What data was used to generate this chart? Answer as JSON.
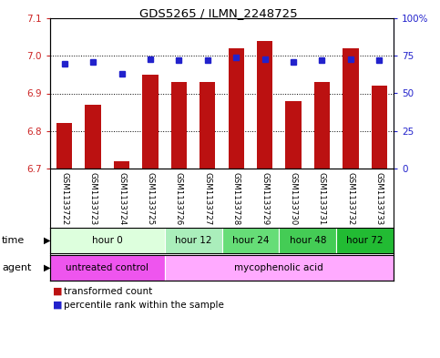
{
  "title": "GDS5265 / ILMN_2248725",
  "samples": [
    "GSM1133722",
    "GSM1133723",
    "GSM1133724",
    "GSM1133725",
    "GSM1133726",
    "GSM1133727",
    "GSM1133728",
    "GSM1133729",
    "GSM1133730",
    "GSM1133731",
    "GSM1133732",
    "GSM1133733"
  ],
  "bar_values": [
    6.82,
    6.87,
    6.72,
    6.95,
    6.93,
    6.93,
    7.02,
    7.04,
    6.88,
    6.93,
    7.02,
    6.92
  ],
  "bar_bottom": 6.7,
  "percentile_values": [
    70,
    71,
    63,
    73,
    72,
    72,
    74,
    73,
    71,
    72,
    73,
    72
  ],
  "ylim_left": [
    6.7,
    7.1
  ],
  "ylim_right": [
    0,
    100
  ],
  "yticks_left": [
    6.7,
    6.8,
    6.9,
    7.0,
    7.1
  ],
  "yticks_right": [
    0,
    25,
    50,
    75,
    100
  ],
  "ytick_labels_right": [
    "0",
    "25",
    "50",
    "75",
    "100%"
  ],
  "bar_color": "#BB1111",
  "dot_color": "#2222CC",
  "time_groups": [
    {
      "label": "hour 0",
      "start": 0,
      "end": 4,
      "color": "#ddffdd"
    },
    {
      "label": "hour 12",
      "start": 4,
      "end": 6,
      "color": "#aaeebb"
    },
    {
      "label": "hour 24",
      "start": 6,
      "end": 8,
      "color": "#66dd77"
    },
    {
      "label": "hour 48",
      "start": 8,
      "end": 10,
      "color": "#44cc55"
    },
    {
      "label": "hour 72",
      "start": 10,
      "end": 12,
      "color": "#22bb33"
    }
  ],
  "agent_groups": [
    {
      "label": "untreated control",
      "start": 0,
      "end": 4,
      "color": "#ee55ee"
    },
    {
      "label": "mycophenolic acid",
      "start": 4,
      "end": 12,
      "color": "#ffaaff"
    }
  ],
  "legend_bar_label": "transformed count",
  "legend_dot_label": "percentile rank within the sample",
  "bg_color": "#ffffff"
}
